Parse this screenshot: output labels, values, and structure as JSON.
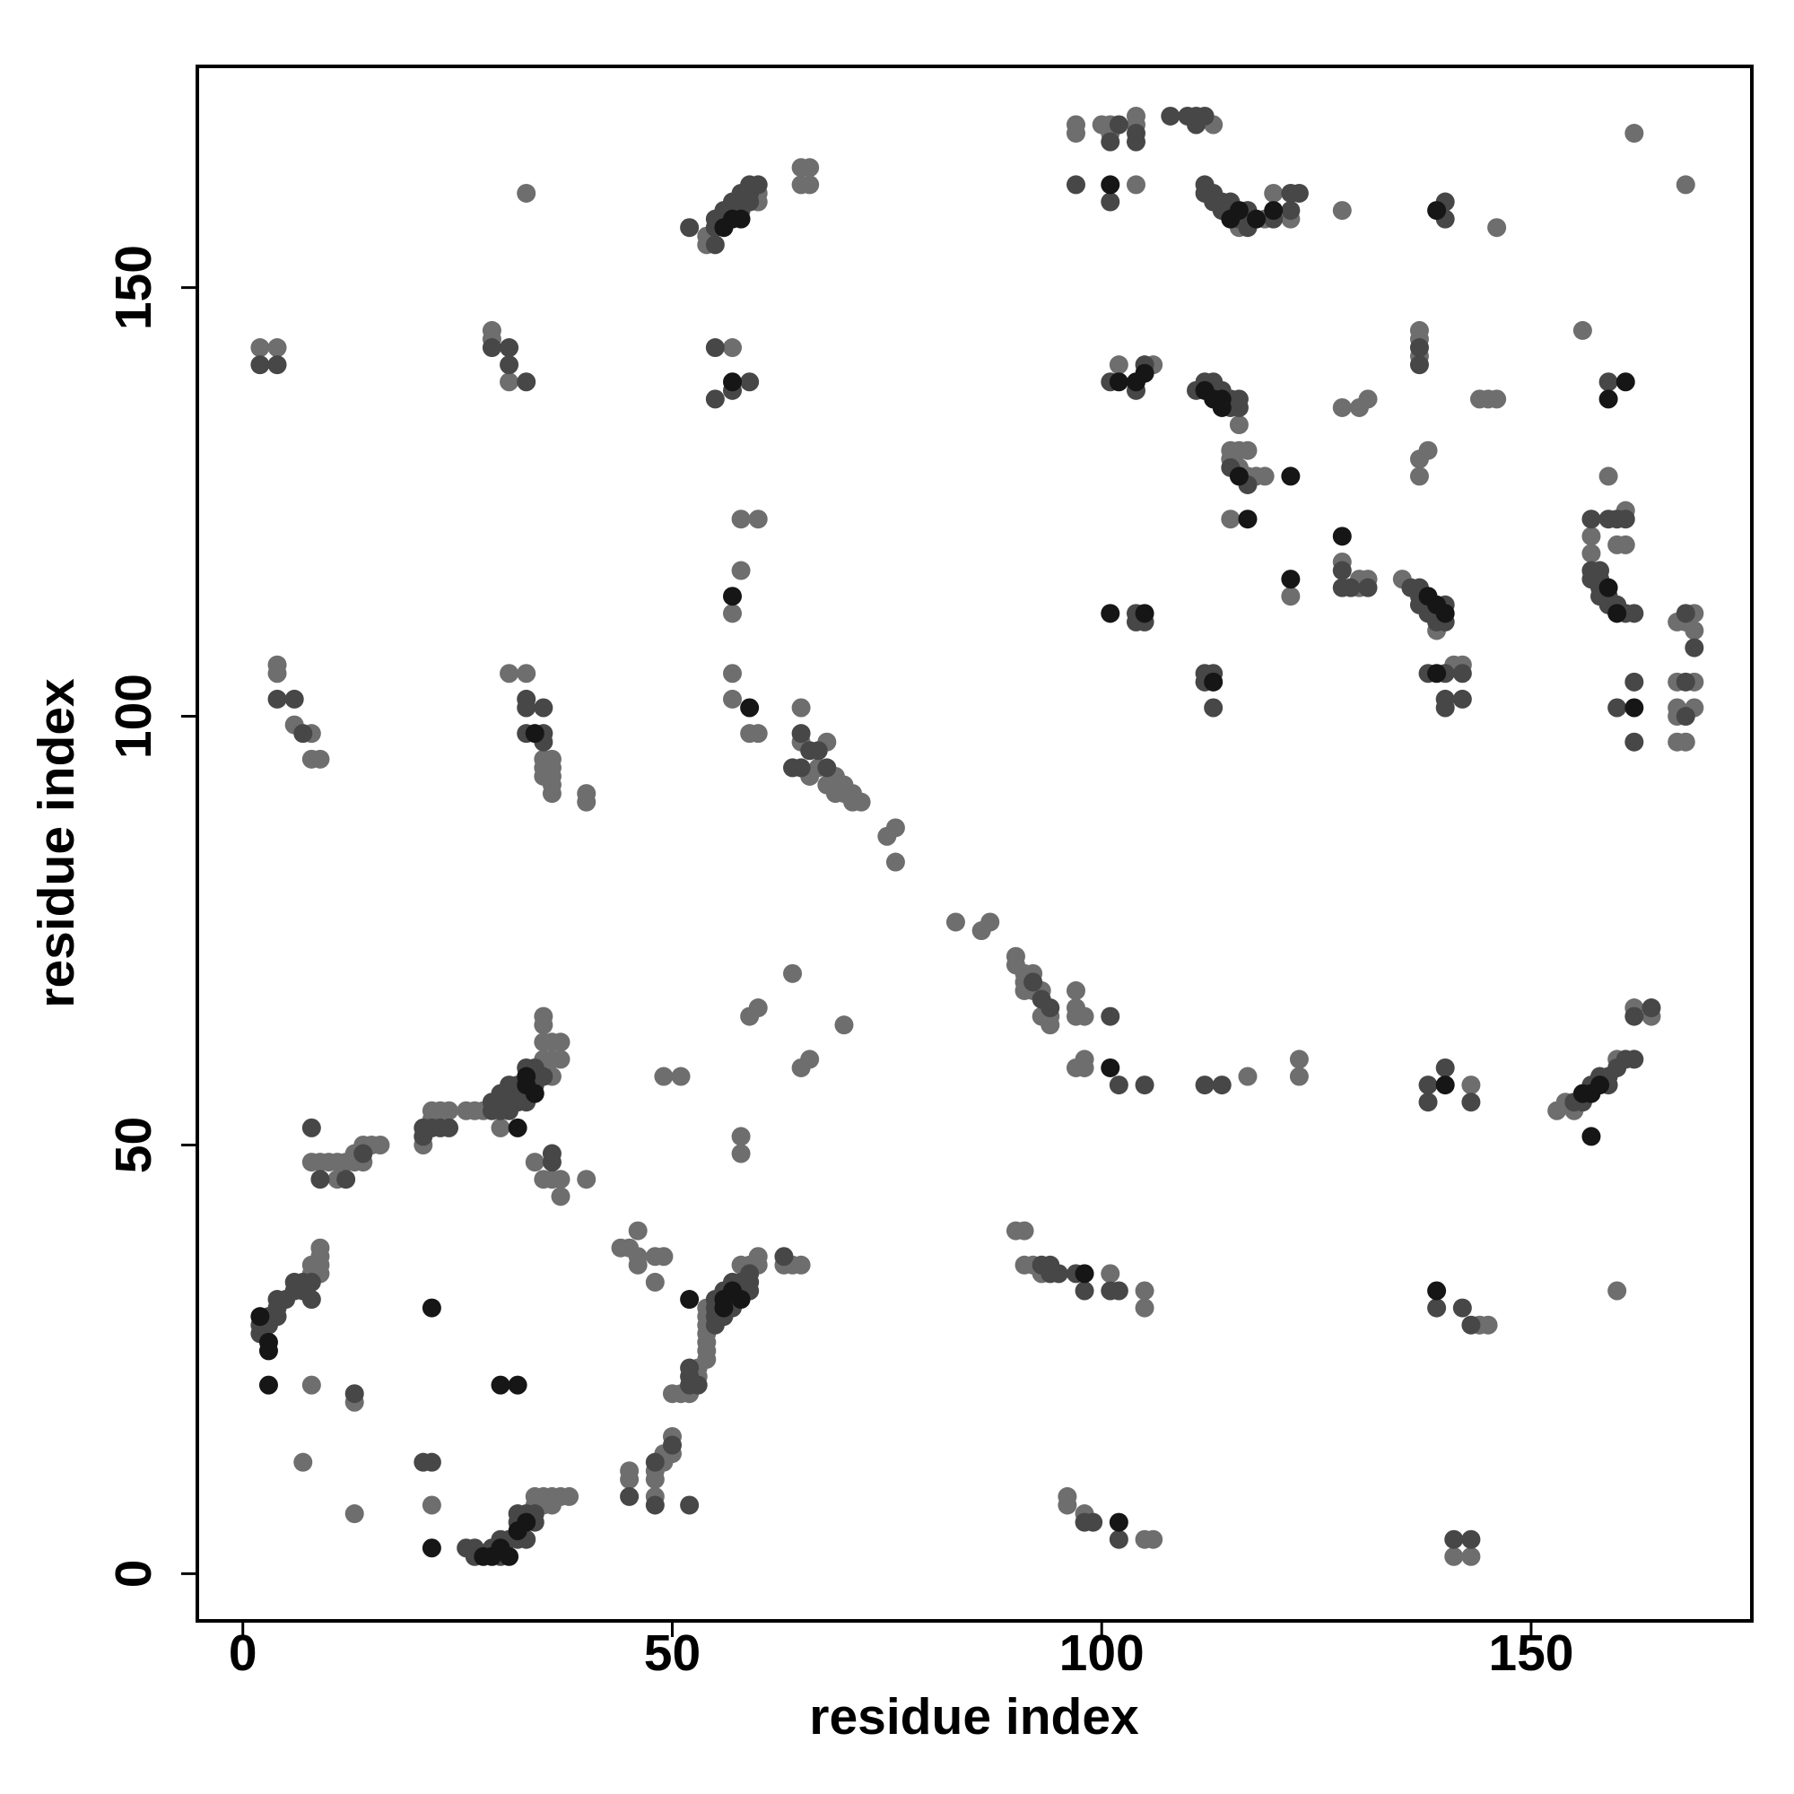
{
  "chart_data": {
    "type": "scatter",
    "xlabel": "residue index",
    "ylabel": "residue index",
    "xlim": [
      -5.3,
      175.7
    ],
    "ylim": [
      -5.5,
      175.8
    ],
    "xticks": [
      0,
      50,
      100,
      150
    ],
    "yticks": [
      0,
      50,
      100,
      150
    ],
    "series": [
      {
        "color": "#6e6e6e",
        "x": [
          8,
          13,
          7,
          13,
          22,
          35,
          35,
          36,
          36,
          37,
          38,
          34,
          34,
          9,
          9,
          9,
          9,
          8,
          8,
          9,
          8,
          10,
          11,
          11,
          12,
          13,
          13,
          14,
          14,
          15,
          16,
          21,
          22,
          22,
          23,
          24,
          26,
          27,
          28,
          30,
          35,
          35,
          35,
          35,
          36,
          36,
          36,
          37,
          37,
          34,
          35,
          36,
          37,
          37,
          40,
          49,
          51,
          58,
          58,
          59,
          60,
          65,
          66,
          64,
          70,
          2,
          4,
          4,
          4,
          6,
          8,
          8,
          9,
          29,
          29,
          31,
          33,
          31,
          33,
          35,
          35,
          35,
          36,
          36,
          36,
          36,
          36,
          40,
          40,
          44,
          45,
          46,
          46,
          46,
          48,
          48,
          49,
          45,
          45,
          48,
          48,
          48,
          49,
          49,
          50,
          50,
          50,
          51,
          52,
          53,
          53,
          54,
          54,
          54,
          54,
          54,
          54,
          54,
          58,
          59,
          60,
          60,
          63,
          64,
          65,
          54,
          54,
          60,
          60,
          65,
          65,
          66,
          66,
          57,
          58,
          60,
          58,
          57,
          57,
          57,
          59,
          60,
          65,
          65,
          66,
          67,
          68,
          68,
          69,
          69,
          70,
          70,
          71,
          71,
          72,
          75,
          76,
          76,
          83,
          86,
          87,
          90,
          90,
          91,
          91,
          91,
          92,
          92,
          93,
          93,
          94,
          94,
          97,
          97,
          97,
          98,
          97,
          98,
          98,
          117,
          123,
          123,
          143,
          153,
          154,
          155,
          160,
          162,
          164,
          90,
          91,
          91,
          92,
          93,
          101,
          105,
          105,
          96,
          96,
          98,
          105,
          106,
          141,
          143,
          144,
          145,
          160,
          97,
          97,
          101,
          100,
          101,
          104,
          104,
          113,
          104,
          116,
          119,
          120,
          122,
          128,
          146,
          162,
          168,
          102,
          106,
          116,
          115,
          115,
          116,
          117,
          116,
          117,
          118,
          119,
          115,
          128,
          130,
          131,
          137,
          137,
          137,
          137,
          137,
          138,
          144,
          145,
          146,
          156,
          159,
          122,
          128,
          130,
          130,
          131,
          135,
          139,
          141,
          142,
          157,
          157,
          160,
          161,
          161,
          167,
          168,
          169,
          169,
          167,
          169,
          167,
          169,
          167,
          167,
          168
        ],
        "values": [
          22,
          20,
          13,
          7,
          8,
          8,
          9,
          8,
          9,
          9,
          9,
          8,
          9,
          35,
          36,
          37,
          38,
          35,
          36,
          48,
          48,
          48,
          48,
          46,
          48,
          48,
          49,
          48,
          50,
          50,
          50,
          50,
          53,
          54,
          54,
          54,
          54,
          54,
          54,
          52,
          60,
          62,
          64,
          65,
          58,
          60,
          62,
          60,
          62,
          48,
          46,
          46,
          44,
          46,
          46,
          58,
          58,
          49,
          51,
          65,
          66,
          59,
          60,
          70,
          64,
          143,
          143,
          105,
          106,
          99,
          98,
          95,
          95,
          144,
          145,
          139,
          161,
          105,
          105,
          95,
          94,
          93,
          95,
          94,
          93,
          92,
          91,
          91,
          90,
          38,
          38,
          36,
          37,
          40,
          34,
          37,
          37,
          11,
          12,
          9,
          11,
          12,
          13,
          14,
          14,
          16,
          21,
          21,
          21,
          23,
          24,
          25,
          26,
          27,
          28,
          29,
          30,
          31,
          36,
          36,
          36,
          37,
          36,
          36,
          36,
          155,
          156,
          160,
          161,
          164,
          162,
          164,
          162,
          143,
          123,
          123,
          117,
          112,
          105,
          102,
          98,
          98,
          101,
          97,
          93,
          94,
          97,
          92,
          93,
          91,
          92,
          91,
          91,
          90,
          90,
          86,
          87,
          83,
          76,
          75,
          76,
          72,
          71,
          70,
          69,
          68,
          70,
          68,
          68,
          65,
          64,
          65,
          68,
          66,
          65,
          65,
          59,
          60,
          59,
          58,
          60,
          58,
          57,
          54,
          55,
          54,
          60,
          66,
          65,
          40,
          40,
          36,
          36,
          35,
          35,
          33,
          31,
          9,
          8,
          7,
          4,
          4,
          2,
          2,
          29,
          29,
          33,
          168,
          169,
          168,
          169,
          169,
          169,
          170,
          169,
          162,
          157,
          158,
          161,
          158,
          159,
          157,
          168,
          162,
          141,
          141,
          134,
          131,
          130,
          131,
          131,
          129,
          128,
          128,
          128,
          123,
          136,
          136,
          137,
          142,
          144,
          145,
          128,
          130,
          131,
          137,
          137,
          137,
          145,
          128,
          114,
          118,
          116,
          115,
          116,
          116,
          110,
          106,
          106,
          121,
          119,
          120,
          124,
          120,
          111,
          111,
          112,
          110,
          104,
          104,
          101,
          101,
          100,
          97,
          97
        ]
      },
      {
        "color": "#474747",
        "x": [
          2,
          2,
          3,
          3,
          4,
          4,
          4,
          5,
          6,
          6,
          7,
          7,
          8,
          8,
          13,
          21,
          22,
          26,
          27,
          27,
          29,
          30,
          30,
          31,
          32,
          32,
          32,
          33,
          33,
          34,
          34,
          8,
          9,
          12,
          14,
          21,
          21,
          22,
          23,
          24,
          29,
          29,
          30,
          30,
          30,
          31,
          31,
          31,
          31,
          32,
          32,
          32,
          33,
          33,
          33,
          34,
          34,
          35,
          36,
          36,
          2,
          4,
          4,
          6,
          7,
          29,
          31,
          31,
          33,
          33,
          33,
          33,
          35,
          35,
          35,
          50,
          48,
          45,
          48,
          52,
          52,
          52,
          52,
          53,
          55,
          55,
          55,
          55,
          56,
          56,
          57,
          57,
          57,
          58,
          58,
          59,
          59,
          59,
          63,
          55,
          55,
          55,
          56,
          56,
          57,
          57,
          58,
          58,
          58,
          59,
          59,
          59,
          60,
          52,
          55,
          55,
          57,
          59,
          65,
          64,
          65,
          66,
          67,
          68,
          93,
          94,
          92,
          101,
          102,
          105,
          112,
          114,
          138,
          138,
          140,
          143,
          155,
          156,
          157,
          158,
          159,
          159,
          160,
          161,
          162,
          162,
          164,
          93,
          94,
          94,
          95,
          97,
          98,
          101,
          102,
          99,
          98,
          102,
          141,
          143,
          139,
          142,
          143,
          97,
          101,
          104,
          104,
          112,
          112,
          113,
          113,
          114,
          114,
          115,
          115,
          116,
          117,
          117,
          117,
          120,
          122,
          122,
          123,
          140,
          140,
          101,
          104,
          105,
          111,
          112,
          113,
          114,
          115,
          115,
          116,
          116,
          115,
          117,
          137,
          137,
          159,
          128,
          128,
          129,
          131,
          136,
          137,
          137,
          137,
          138,
          139,
          139,
          140,
          140,
          104,
          104,
          105,
          112,
          113,
          112,
          113,
          138,
          140,
          142,
          140,
          140,
          142,
          157,
          157,
          157,
          158,
          158,
          158,
          158,
          159,
          159,
          159,
          160,
          160,
          161,
          161,
          162,
          160,
          162,
          162,
          168,
          169,
          168,
          168,
          108,
          110,
          111,
          112,
          111,
          101,
          102
        ],
        "values": [
          28,
          29,
          29,
          30,
          30,
          31,
          32,
          32,
          33,
          34,
          33,
          34,
          32,
          34,
          21,
          13,
          13,
          3,
          3,
          2,
          3,
          2,
          4,
          4,
          4,
          6,
          7,
          4,
          7,
          6,
          7,
          52,
          46,
          46,
          49,
          51,
          52,
          52,
          52,
          52,
          54,
          55,
          54,
          55,
          56,
          54,
          55,
          56,
          57,
          55,
          56,
          57,
          55,
          56,
          59,
          57,
          59,
          58,
          48,
          49,
          141,
          141,
          102,
          102,
          98,
          143,
          143,
          141,
          139,
          102,
          101,
          98,
          101,
          98,
          97,
          15,
          13,
          9,
          8,
          8,
          22,
          23,
          24,
          22,
          29,
          30,
          31,
          32,
          30,
          33,
          31,
          32,
          34,
          33,
          34,
          33,
          34,
          35,
          37,
          155,
          157,
          158,
          158,
          159,
          159,
          160,
          159,
          160,
          161,
          160,
          161,
          162,
          162,
          157,
          143,
          137,
          138,
          139,
          98,
          94,
          94,
          96,
          96,
          94,
          67,
          66,
          69,
          65,
          57,
          57,
          57,
          57,
          57,
          55,
          59,
          55,
          55,
          55,
          57,
          58,
          58,
          57,
          59,
          60,
          60,
          65,
          66,
          36,
          36,
          35,
          35,
          35,
          33,
          33,
          33,
          6,
          6,
          4,
          4,
          4,
          31,
          31,
          29,
          162,
          160,
          168,
          167,
          162,
          161,
          161,
          160,
          160,
          159,
          160,
          159,
          158,
          159,
          158,
          157,
          158,
          161,
          159,
          161,
          160,
          158,
          139,
          138,
          141,
          138,
          139,
          139,
          138,
          136,
          137,
          136,
          137,
          129,
          127,
          141,
          143,
          139,
          117,
          115,
          115,
          115,
          115,
          115,
          114,
          113,
          112,
          112,
          111,
          113,
          111,
          112,
          111,
          111,
          105,
          105,
          104,
          101,
          105,
          105,
          105,
          102,
          101,
          102,
          123,
          117,
          116,
          116,
          117,
          115,
          114,
          123,
          114,
          113,
          113,
          123,
          123,
          112,
          112,
          101,
          104,
          97,
          112,
          108,
          104,
          100,
          170,
          170,
          170,
          170,
          169,
          167,
          169
        ]
      },
      {
        "color": "#161616",
        "x": [
          3,
          3,
          3,
          2,
          22,
          30,
          32,
          22,
          28,
          29,
          30,
          31,
          32,
          33,
          32,
          33,
          33,
          34,
          34,
          56,
          56,
          57,
          58,
          52,
          56,
          57,
          58,
          57,
          59,
          57,
          101,
          98,
          102,
          112,
          113,
          114,
          114,
          116,
          117,
          122,
          122,
          128,
          138,
          139,
          140,
          139,
          113,
          101,
          105,
          140,
          139,
          157,
          157,
          158,
          156,
          139,
          118,
          120,
          116,
          115,
          161,
          159,
          160,
          162,
          101,
          105,
          104,
          102,
          159
        ],
        "values": [
          22,
          26,
          27,
          30,
          3,
          22,
          22,
          31,
          2,
          2,
          3,
          2,
          5,
          6,
          52,
          57,
          58,
          56,
          98,
          31,
          32,
          33,
          32,
          32,
          157,
          158,
          158,
          139,
          101,
          114,
          59,
          35,
          6,
          138,
          137,
          137,
          136,
          128,
          123,
          128,
          116,
          121,
          114,
          113,
          112,
          105,
          104,
          112,
          112,
          57,
          33,
          51,
          56,
          57,
          56,
          159,
          158,
          159,
          159,
          158,
          139,
          115,
          112,
          101,
          162,
          140,
          139,
          139,
          137
        ]
      }
    ]
  }
}
